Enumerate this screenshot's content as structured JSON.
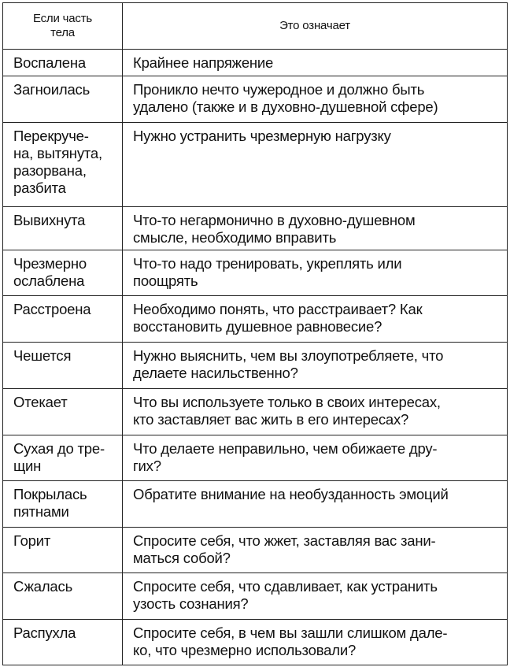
{
  "header": {
    "col1": [
      "Если часть",
      "тела"
    ],
    "col2": "Это означает"
  },
  "rows": [
    {
      "part": [
        "Воспалена"
      ],
      "meaning": [
        "Крайнее напряжение"
      ]
    },
    {
      "part": [
        "Загноилась"
      ],
      "meaning": [
        "Проникло нечто чужеродное и должно быть",
        "удалено (также и в духовно-душевной сфере)"
      ]
    },
    {
      "part": [
        "Перекруче-",
        "на, вытянута,",
        "разорвана,",
        "разбита"
      ],
      "meaning": [
        "Нужно устранить чрезмерную нагрузку"
      ]
    },
    {
      "part": [
        "Вывихнута"
      ],
      "meaning": [
        "Что-то негармонично в духовно-душевном",
        "смысле, необходимо вправить"
      ]
    },
    {
      "part": [
        "Чрезмерно",
        "ослаблена"
      ],
      "meaning": [
        "Что-то надо тренировать, укреплять или",
        "поощрять"
      ]
    },
    {
      "part": [
        "Расстроена"
      ],
      "meaning": [
        "Необходимо понять, что расстраивает? Как",
        "восстановить душевное равновесие?"
      ]
    },
    {
      "part": [
        "Чешется"
      ],
      "meaning": [
        "Нужно выяснить, чем вы злоупотребляете, что",
        "делаете насильственно?"
      ]
    },
    {
      "part": [
        "Отекает"
      ],
      "meaning": [
        "Что вы используете только в своих интересах,",
        "кто заставляет вас жить в его интересах?"
      ]
    },
    {
      "part": [
        "Сухая до тре-",
        "щин"
      ],
      "meaning": [
        "Что делаете неправильно, чем обижаете дру-",
        "гих?"
      ]
    },
    {
      "part": [
        "Покрылась",
        "пятнами"
      ],
      "meaning": [
        "Обратите внимание на необузданность эмоций"
      ]
    },
    {
      "part": [
        "Горит"
      ],
      "meaning": [
        "Спросите себя, что жжет, заставляя вас зани-",
        "маться собой?"
      ]
    },
    {
      "part": [
        "Сжалась"
      ],
      "meaning": [
        "Спросите себя, что сдавливает, как устранить",
        "узость сознания?"
      ]
    },
    {
      "part": [
        "Распухла"
      ],
      "meaning": [
        "Спросите себя, в чем вы зашли слишком дале-",
        "ко, что чрезмерно использовали?"
      ]
    }
  ]
}
